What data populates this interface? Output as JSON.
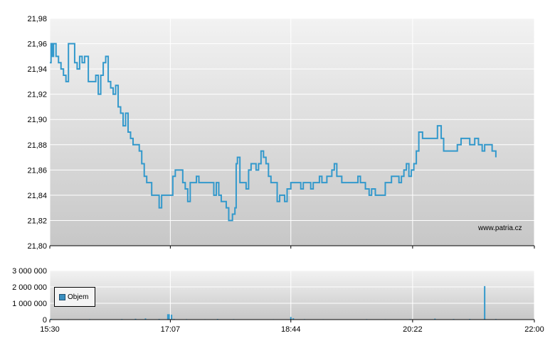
{
  "watermark": "www.patria.cz",
  "colors": {
    "line": "#3399cc",
    "bar": "#3399cc",
    "grid": "#ffffff"
  },
  "chart_data": [
    {
      "type": "line",
      "series": [
        {
          "values": [
            [
              "15:30",
              21.945
            ],
            [
              "15:31",
              21.96
            ],
            [
              "15:32",
              21.95
            ],
            [
              "15:33",
              21.96
            ],
            [
              "15:35",
              21.95
            ],
            [
              "15:37",
              21.945
            ],
            [
              "15:39",
              21.94
            ],
            [
              "15:41",
              21.935
            ],
            [
              "15:43",
              21.93
            ],
            [
              "15:45",
              21.96
            ],
            [
              "15:48",
              21.96
            ],
            [
              "15:50",
              21.945
            ],
            [
              "15:52",
              21.94
            ],
            [
              "15:54",
              21.95
            ],
            [
              "15:56",
              21.945
            ],
            [
              "15:58",
              21.95
            ],
            [
              "16:00",
              21.95
            ],
            [
              "16:01",
              21.93
            ],
            [
              "16:04",
              21.93
            ],
            [
              "16:07",
              21.935
            ],
            [
              "16:09",
              21.92
            ],
            [
              "16:11",
              21.935
            ],
            [
              "16:13",
              21.945
            ],
            [
              "16:15",
              21.95
            ],
            [
              "16:17",
              21.93
            ],
            [
              "16:19",
              21.925
            ],
            [
              "16:21",
              21.92
            ],
            [
              "16:23",
              21.927
            ],
            [
              "16:25",
              21.91
            ],
            [
              "16:27",
              21.905
            ],
            [
              "16:29",
              21.895
            ],
            [
              "16:31",
              21.905
            ],
            [
              "16:33",
              21.89
            ],
            [
              "16:35",
              21.885
            ],
            [
              "16:37",
              21.88
            ],
            [
              "16:40",
              21.88
            ],
            [
              "16:42",
              21.875
            ],
            [
              "16:44",
              21.865
            ],
            [
              "16:46",
              21.855
            ],
            [
              "16:48",
              21.85
            ],
            [
              "16:50",
              21.85
            ],
            [
              "16:52",
              21.84
            ],
            [
              "16:56",
              21.84
            ],
            [
              "16:58",
              21.83
            ],
            [
              "17:00",
              21.84
            ],
            [
              "17:04",
              21.84
            ],
            [
              "17:07",
              21.84
            ],
            [
              "17:09",
              21.855
            ],
            [
              "17:11",
              21.86
            ],
            [
              "17:15",
              21.86
            ],
            [
              "17:17",
              21.85
            ],
            [
              "17:19",
              21.845
            ],
            [
              "17:21",
              21.835
            ],
            [
              "17:23",
              21.85
            ],
            [
              "17:26",
              21.85
            ],
            [
              "17:28",
              21.855
            ],
            [
              "17:30",
              21.85
            ],
            [
              "17:35",
              21.85
            ],
            [
              "17:40",
              21.85
            ],
            [
              "17:42",
              21.84
            ],
            [
              "17:44",
              21.85
            ],
            [
              "17:46",
              21.84
            ],
            [
              "17:48",
              21.835
            ],
            [
              "17:50",
              21.835
            ],
            [
              "17:52",
              21.83
            ],
            [
              "17:54",
              21.82
            ],
            [
              "17:57",
              21.825
            ],
            [
              "17:59",
              21.83
            ],
            [
              "18:00",
              21.865
            ],
            [
              "18:01",
              21.87
            ],
            [
              "18:03",
              21.85
            ],
            [
              "18:06",
              21.85
            ],
            [
              "18:08",
              21.845
            ],
            [
              "18:10",
              21.86
            ],
            [
              "18:12",
              21.865
            ],
            [
              "18:14",
              21.865
            ],
            [
              "18:16",
              21.86
            ],
            [
              "18:18",
              21.865
            ],
            [
              "18:20",
              21.875
            ],
            [
              "18:22",
              21.87
            ],
            [
              "18:24",
              21.865
            ],
            [
              "18:26",
              21.855
            ],
            [
              "18:28",
              21.85
            ],
            [
              "18:31",
              21.85
            ],
            [
              "18:33",
              21.835
            ],
            [
              "18:35",
              21.84
            ],
            [
              "18:37",
              21.84
            ],
            [
              "18:39",
              21.835
            ],
            [
              "18:41",
              21.845
            ],
            [
              "18:44",
              21.85
            ],
            [
              "18:48",
              21.85
            ],
            [
              "18:52",
              21.845
            ],
            [
              "18:54",
              21.85
            ],
            [
              "18:58",
              21.85
            ],
            [
              "19:00",
              21.845
            ],
            [
              "19:02",
              21.85
            ],
            [
              "19:05",
              21.85
            ],
            [
              "19:07",
              21.855
            ],
            [
              "19:09",
              21.85
            ],
            [
              "19:11",
              21.85
            ],
            [
              "19:13",
              21.855
            ],
            [
              "19:15",
              21.855
            ],
            [
              "19:17",
              21.86
            ],
            [
              "19:19",
              21.865
            ],
            [
              "19:21",
              21.855
            ],
            [
              "19:25",
              21.85
            ],
            [
              "19:30",
              21.85
            ],
            [
              "19:35",
              21.85
            ],
            [
              "19:38",
              21.855
            ],
            [
              "19:40",
              21.85
            ],
            [
              "19:44",
              21.845
            ],
            [
              "19:47",
              21.84
            ],
            [
              "19:49",
              21.845
            ],
            [
              "19:52",
              21.84
            ],
            [
              "19:55",
              21.84
            ],
            [
              "19:58",
              21.84
            ],
            [
              "20:00",
              21.85
            ],
            [
              "20:02",
              21.85
            ],
            [
              "20:05",
              21.855
            ],
            [
              "20:08",
              21.855
            ],
            [
              "20:11",
              21.85
            ],
            [
              "20:13",
              21.855
            ],
            [
              "20:15",
              21.86
            ],
            [
              "20:17",
              21.865
            ],
            [
              "20:19",
              21.855
            ],
            [
              "20:21",
              21.86
            ],
            [
              "20:23",
              21.865
            ],
            [
              "20:25",
              21.875
            ],
            [
              "20:27",
              21.89
            ],
            [
              "20:30",
              21.885
            ],
            [
              "20:35",
              21.885
            ],
            [
              "20:40",
              21.885
            ],
            [
              "20:42",
              21.895
            ],
            [
              "20:45",
              21.885
            ],
            [
              "20:47",
              21.875
            ],
            [
              "20:50",
              21.875
            ],
            [
              "20:55",
              21.875
            ],
            [
              "20:58",
              21.88
            ],
            [
              "21:01",
              21.885
            ],
            [
              "21:05",
              21.885
            ],
            [
              "21:08",
              21.88
            ],
            [
              "21:12",
              21.885
            ],
            [
              "21:15",
              21.88
            ],
            [
              "21:18",
              21.875
            ],
            [
              "21:20",
              21.88
            ],
            [
              "21:23",
              21.88
            ],
            [
              "21:26",
              21.875
            ],
            [
              "21:29",
              21.87
            ]
          ]
        }
      ],
      "yticks": [
        "21,98",
        "21,96",
        "21,94",
        "21,92",
        "21,90",
        "21,88",
        "21,86",
        "21,84",
        "21,82",
        "21,80"
      ],
      "ylim": [
        21.8,
        21.98
      ],
      "xlim": [
        "15:30",
        "22:00"
      ],
      "grid": true
    },
    {
      "type": "bar",
      "series": [
        {
          "name": "Objem",
          "values": [
            [
              "15:31",
              40000
            ],
            [
              "15:45",
              25000
            ],
            [
              "16:02",
              30000
            ],
            [
              "16:18",
              20000
            ],
            [
              "16:28",
              35000
            ],
            [
              "16:39",
              50000
            ],
            [
              "16:47",
              70000
            ],
            [
              "16:58",
              40000
            ],
            [
              "17:05",
              330000
            ],
            [
              "17:06",
              330000
            ],
            [
              "17:08",
              300000
            ],
            [
              "17:10",
              40000
            ],
            [
              "17:20",
              30000
            ],
            [
              "17:35",
              25000
            ],
            [
              "17:45",
              40000
            ],
            [
              "17:58",
              30000
            ],
            [
              "18:10",
              20000
            ],
            [
              "18:30",
              25000
            ],
            [
              "18:44",
              160000
            ],
            [
              "18:46",
              80000
            ],
            [
              "18:55",
              30000
            ],
            [
              "19:10",
              25000
            ],
            [
              "19:30",
              20000
            ],
            [
              "19:45",
              30000
            ],
            [
              "20:00",
              25000
            ],
            [
              "20:20",
              30000
            ],
            [
              "20:40",
              60000
            ],
            [
              "20:55",
              35000
            ],
            [
              "21:08",
              40000
            ],
            [
              "21:20",
              2050000
            ],
            [
              "21:29",
              35000
            ]
          ]
        }
      ],
      "yticks": [
        "3 000 000",
        "2 000 000",
        "1 000 000",
        "0"
      ],
      "ylim": [
        0,
        3000000
      ],
      "xticks": [
        "15:30",
        "17:07",
        "18:44",
        "20:22",
        "22:00"
      ],
      "legend_position": "left",
      "grid": true
    }
  ]
}
